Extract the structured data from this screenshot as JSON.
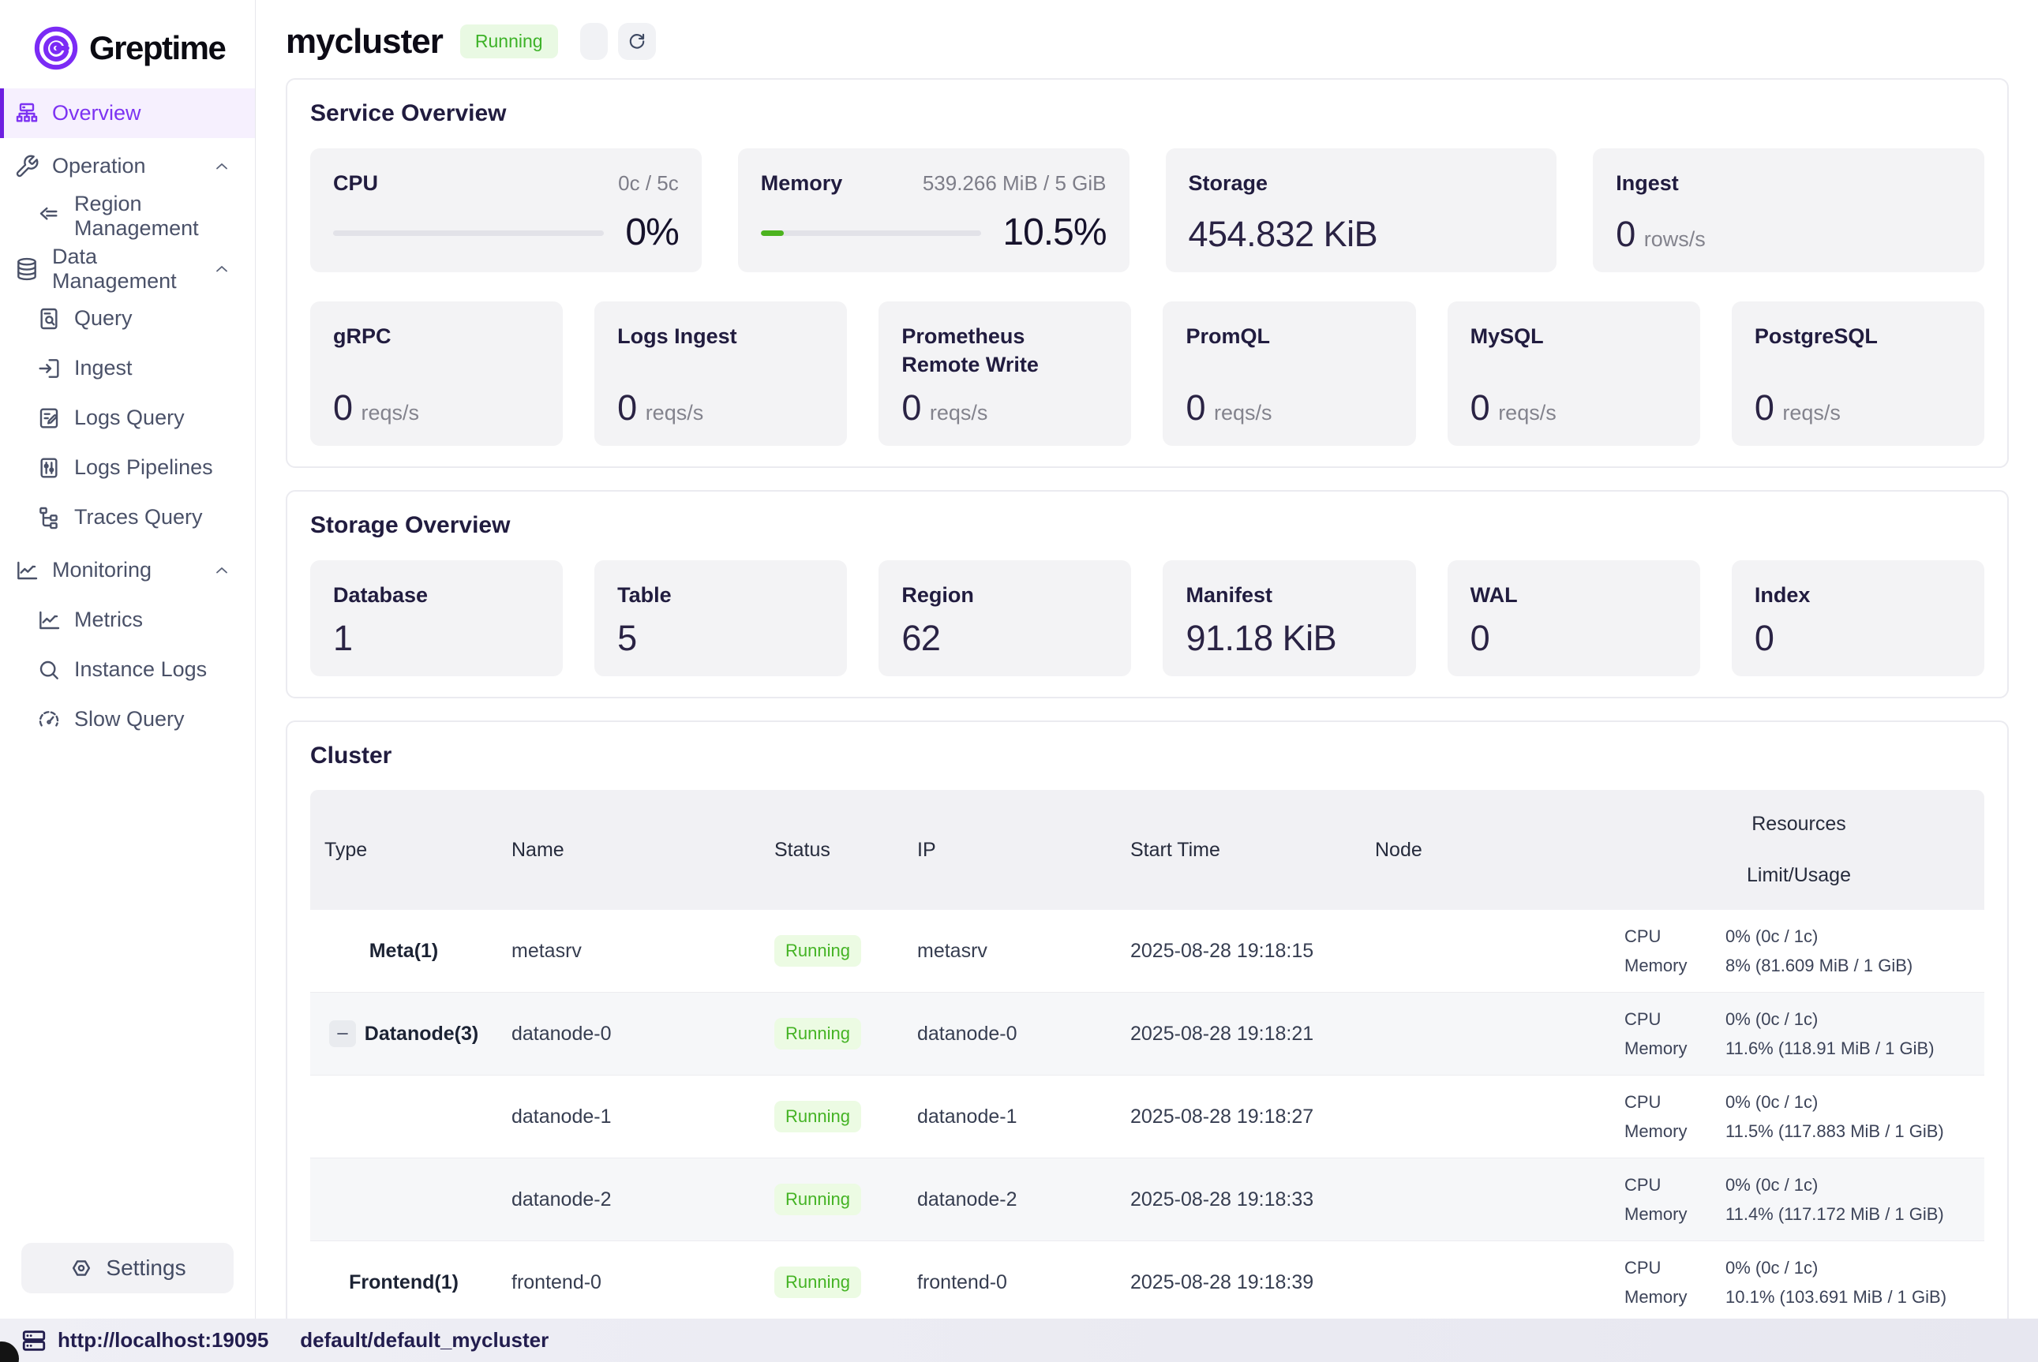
{
  "brand": {
    "name": "Greptime"
  },
  "header": {
    "title": "mycluster",
    "status": "Running"
  },
  "sidebar": {
    "items": [
      {
        "label": "Overview"
      },
      {
        "label": "Operation"
      },
      {
        "label": "Region Management"
      },
      {
        "label": "Data Management"
      },
      {
        "label": "Query"
      },
      {
        "label": "Ingest"
      },
      {
        "label": "Logs Query"
      },
      {
        "label": "Logs Pipelines"
      },
      {
        "label": "Traces Query"
      },
      {
        "label": "Monitoring"
      },
      {
        "label": "Metrics"
      },
      {
        "label": "Instance Logs"
      },
      {
        "label": "Slow Query"
      }
    ],
    "settings_label": "Settings"
  },
  "service_overview": {
    "title": "Service Overview",
    "cpu": {
      "label": "CPU",
      "limit": "0c / 5c",
      "percent_text": "0%",
      "percent": 0
    },
    "memory": {
      "label": "Memory",
      "limit": "539.266 MiB / 5 GiB",
      "percent_text": "10.5%",
      "percent": 10.5
    },
    "storage": {
      "label": "Storage",
      "value": "454.832 KiB"
    },
    "ingest": {
      "label": "Ingest",
      "value": "0",
      "unit": "rows/s"
    },
    "rates": [
      {
        "label": "gRPC",
        "value": "0",
        "unit": "reqs/s"
      },
      {
        "label": "Logs Ingest",
        "value": "0",
        "unit": "reqs/s"
      },
      {
        "label": "Prometheus Remote Write",
        "value": "0",
        "unit": "reqs/s"
      },
      {
        "label": "PromQL",
        "value": "0",
        "unit": "reqs/s"
      },
      {
        "label": "MySQL",
        "value": "0",
        "unit": "reqs/s"
      },
      {
        "label": "PostgreSQL",
        "value": "0",
        "unit": "reqs/s"
      }
    ]
  },
  "storage_overview": {
    "title": "Storage Overview",
    "cards": [
      {
        "label": "Database",
        "value": "1"
      },
      {
        "label": "Table",
        "value": "5"
      },
      {
        "label": "Region",
        "value": "62"
      },
      {
        "label": "Manifest",
        "value": "91.18 KiB"
      },
      {
        "label": "WAL",
        "value": "0"
      },
      {
        "label": "Index",
        "value": "0"
      }
    ]
  },
  "cluster": {
    "title": "Cluster",
    "columns": {
      "type": "Type",
      "name": "Name",
      "status": "Status",
      "ip": "IP",
      "start_time": "Start Time",
      "node": "Node",
      "resources": "Resources",
      "limit_usage": "Limit/Usage"
    },
    "resource_labels": {
      "cpu": "CPU",
      "memory": "Memory"
    },
    "rows": [
      {
        "type": "Meta(1)",
        "name": "metasrv",
        "status": "Running",
        "ip": "metasrv",
        "start_time": "2025-08-28 19:18:15",
        "node": "",
        "cpu": "0% (0c / 1c)",
        "memory": "8% (81.609 MiB / 1 GiB)"
      },
      {
        "type": "Datanode(3)",
        "name": "datanode-0",
        "status": "Running",
        "ip": "datanode-0",
        "start_time": "2025-08-28 19:18:21",
        "node": "",
        "cpu": "0% (0c / 1c)",
        "memory": "11.6% (118.91 MiB / 1 GiB)"
      },
      {
        "type": "",
        "name": "datanode-1",
        "status": "Running",
        "ip": "datanode-1",
        "start_time": "2025-08-28 19:18:27",
        "node": "",
        "cpu": "0% (0c / 1c)",
        "memory": "11.5% (117.883 MiB / 1 GiB)"
      },
      {
        "type": "",
        "name": "datanode-2",
        "status": "Running",
        "ip": "datanode-2",
        "start_time": "2025-08-28 19:18:33",
        "node": "",
        "cpu": "0% (0c / 1c)",
        "memory": "11.4% (117.172 MiB / 1 GiB)"
      },
      {
        "type": "Frontend(1)",
        "name": "frontend-0",
        "status": "Running",
        "ip": "frontend-0",
        "start_time": "2025-08-28 19:18:39",
        "node": "",
        "cpu": "0% (0c / 1c)",
        "memory": "10.1% (103.691 MiB / 1 GiB)"
      }
    ]
  },
  "status_bar": {
    "url": "http://localhost:19095",
    "database": "default/default_mycluster"
  },
  "colors": {
    "accent": "#7d33f2",
    "running_green": "#3db228",
    "running_badge_bg": "#e9f9e3",
    "bar_green": "#4cb31f",
    "card_bg": "#f3f3f5"
  }
}
